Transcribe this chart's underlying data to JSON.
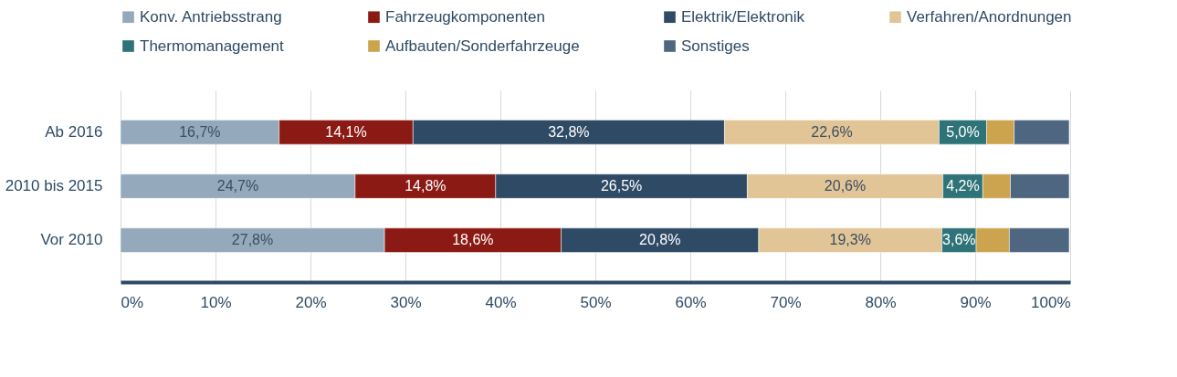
{
  "chart_data": {
    "type": "bar",
    "orientation": "horizontal",
    "stacked": true,
    "legend": "top",
    "grid": "x",
    "categories": [
      "Ab 2016",
      "2010 bis 2015",
      "Vor 2010"
    ],
    "xlim": [
      0,
      100
    ],
    "xticks": [
      {
        "value": 0,
        "label": "0%"
      },
      {
        "value": 10,
        "label": "10%"
      },
      {
        "value": 20,
        "label": "20%"
      },
      {
        "value": 30,
        "label": "30%"
      },
      {
        "value": 40,
        "label": "40%"
      },
      {
        "value": 50,
        "label": "50%"
      },
      {
        "value": 60,
        "label": "60%"
      },
      {
        "value": 70,
        "label": "70%"
      },
      {
        "value": 80,
        "label": "80%"
      },
      {
        "value": 90,
        "label": "90%"
      },
      {
        "value": 100,
        "label": "100%"
      }
    ],
    "series": [
      {
        "name": "Konv. Antriebsstrang",
        "color": "#94a9bb",
        "values": [
          16.7,
          24.7,
          27.8
        ],
        "value_labels": [
          "16,7%",
          "24,7%",
          "27,8%"
        ]
      },
      {
        "name": "Fahrzeugkomponenten",
        "color": "#8b1a14",
        "values": [
          14.1,
          14.8,
          18.6
        ],
        "value_labels": [
          "14,1%",
          "14,8%",
          "18,6%"
        ]
      },
      {
        "name": "Elektrik/Elektronik",
        "color": "#2e4a65",
        "values": [
          32.8,
          26.5,
          20.8
        ],
        "value_labels": [
          "32,8%",
          "26,5%",
          "20,8%"
        ]
      },
      {
        "name": "Verfahren/Anordnungen",
        "color": "#e2c597",
        "values": [
          22.6,
          20.6,
          19.3
        ],
        "value_labels": [
          "22,6%",
          "20,6%",
          "19,3%"
        ]
      },
      {
        "name": "Thermomanagement",
        "color": "#2e7377",
        "values": [
          5.0,
          4.2,
          3.6
        ],
        "value_labels": [
          "5,0%",
          "4,2%",
          "3,6%"
        ]
      },
      {
        "name": "Aufbauten/Sonderfahrzeuge",
        "color": "#cca450",
        "values": [
          2.9,
          2.9,
          3.5
        ]
      },
      {
        "name": "Sonstiges",
        "color": "#4f6680",
        "values": [
          5.8,
          6.2,
          6.3
        ]
      }
    ]
  }
}
